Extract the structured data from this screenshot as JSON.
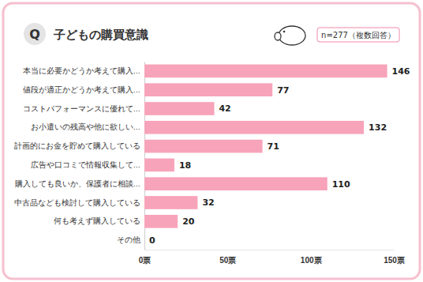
{
  "chart_data": {
    "type": "bar",
    "orientation": "horizontal",
    "title": "子どもの購買意識",
    "subtitle": "n=277（複数回答）",
    "annotations": [
      "Q"
    ],
    "categories": [
      "本当に必要かどうか考えて購入…",
      "値段が適正かどうか考えて購入…",
      "コストパフォーマンスに優れて…",
      "お小遣いの残高や他に欲しい…",
      "計画的にお金を貯めて購入している",
      "広告や口コミで情報収集して…",
      "購入しても良いか、保護者に相談…",
      "中古品なども検討して購入している",
      "何も考えず購入している",
      "その他"
    ],
    "values": [
      146,
      77,
      42,
      132,
      71,
      18,
      110,
      32,
      20,
      0
    ],
    "color": "#f7a3ba",
    "xlim": [
      0,
      150
    ],
    "xticks": [
      {
        "value": 0,
        "label": "0票"
      },
      {
        "value": 50,
        "label": "50票"
      },
      {
        "value": 100,
        "label": "100票"
      },
      {
        "value": 150,
        "label": "150票"
      }
    ],
    "grid": false,
    "data_labels": true
  }
}
